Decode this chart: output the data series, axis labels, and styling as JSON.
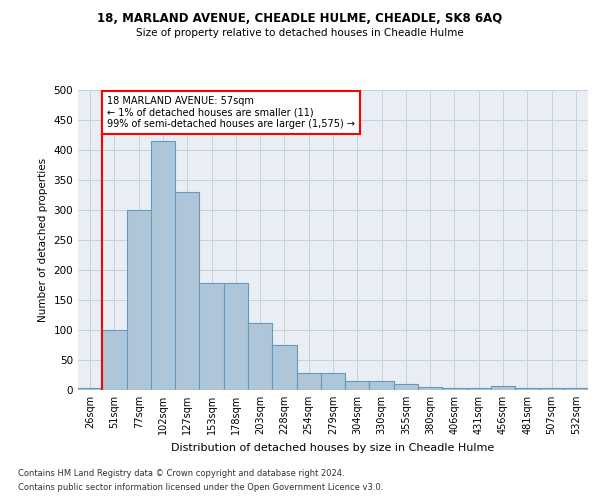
{
  "title1": "18, MARLAND AVENUE, CHEADLE HULME, CHEADLE, SK8 6AQ",
  "title2": "Size of property relative to detached houses in Cheadle Hulme",
  "xlabel": "Distribution of detached houses by size in Cheadle Hulme",
  "ylabel": "Number of detached properties",
  "categories": [
    "26sqm",
    "51sqm",
    "77sqm",
    "102sqm",
    "127sqm",
    "153sqm",
    "178sqm",
    "203sqm",
    "228sqm",
    "254sqm",
    "279sqm",
    "304sqm",
    "330sqm",
    "355sqm",
    "380sqm",
    "406sqm",
    "431sqm",
    "456sqm",
    "481sqm",
    "507sqm",
    "532sqm"
  ],
  "values": [
    3,
    100,
    300,
    415,
    330,
    178,
    178,
    112,
    75,
    28,
    28,
    15,
    15,
    10,
    5,
    3,
    3,
    6,
    3,
    3,
    3
  ],
  "bar_color": "#aec6d8",
  "bar_edge_color": "#6699bb",
  "red_line_index": 1,
  "annotation_text": "18 MARLAND AVENUE: 57sqm\n← 1% of detached houses are smaller (11)\n99% of semi-detached houses are larger (1,575) →",
  "annotation_box_color": "white",
  "annotation_box_edge_color": "red",
  "ylim": [
    0,
    500
  ],
  "yticks": [
    0,
    50,
    100,
    150,
    200,
    250,
    300,
    350,
    400,
    450,
    500
  ],
  "grid_color": "#c8d0d8",
  "bg_color": "#e8eef4",
  "footer1": "Contains HM Land Registry data © Crown copyright and database right 2024.",
  "footer2": "Contains public sector information licensed under the Open Government Licence v3.0."
}
